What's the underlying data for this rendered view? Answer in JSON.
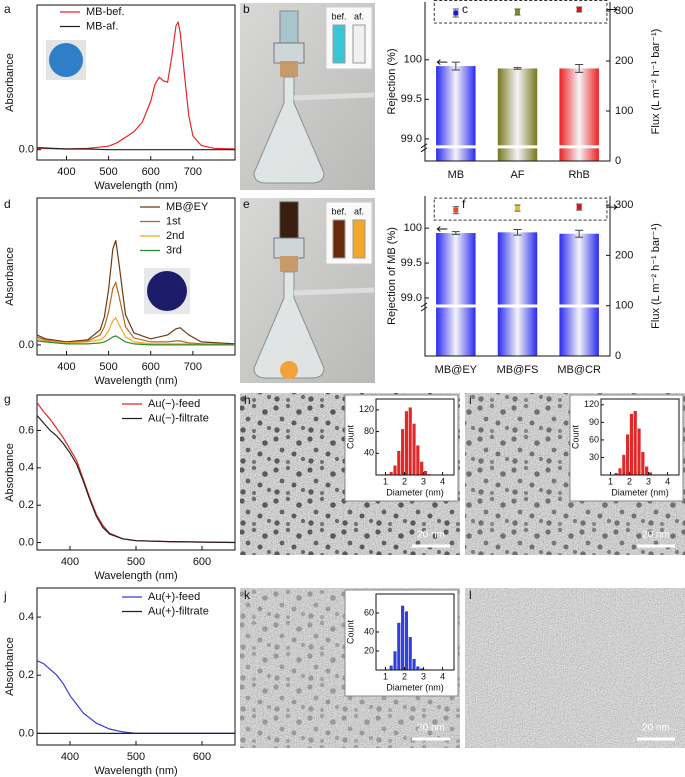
{
  "chart_data": [
    {
      "panel_label": "a",
      "type": "line",
      "xlabel": "Wavelength (nm)",
      "ylabel": "Absorbance",
      "x": [
        330,
        400,
        450,
        500,
        520,
        540,
        560,
        580,
        600,
        610,
        620,
        630,
        640,
        650,
        660,
        665,
        670,
        680,
        690,
        700,
        720,
        750,
        800
      ],
      "xlim": [
        330,
        800
      ],
      "xticks": [
        400,
        500,
        600,
        700
      ],
      "ylim": [
        -0.15,
        2.1
      ],
      "yticks": [
        {
          "value": 0,
          "label": "0.0"
        }
      ],
      "series": [
        {
          "name": "MB-bef.",
          "color": "#e8252a",
          "values": [
            0.02,
            0.01,
            0.02,
            0.05,
            0.1,
            0.18,
            0.26,
            0.4,
            0.7,
            0.95,
            1.05,
            1.0,
            0.98,
            1.35,
            1.8,
            1.85,
            1.7,
            1.1,
            0.5,
            0.2,
            0.06,
            0.02,
            0.01
          ]
        },
        {
          "name": "MB-af.",
          "color": "#222222",
          "values": [
            0.03,
            0.01,
            0.01,
            0.0,
            0.0,
            0.0,
            0.0,
            0.0,
            0.0,
            0.0,
            0.0,
            0.0,
            0.0,
            0.0,
            0.0,
            0.0,
            0.0,
            0.0,
            0.0,
            0.0,
            0.0,
            0.0,
            0.0
          ]
        }
      ]
    },
    {
      "panel_label": "c",
      "type": "bar",
      "ylabel": "Rejection (%)",
      "y2label": "Flux (L m⁻² h⁻¹ bar⁻¹)",
      "categories": [
        "MB",
        "AF",
        "RhB"
      ],
      "ylim": [
        98.72,
        100.73
      ],
      "yticks": [
        {
          "value": 99,
          "label": "99.0"
        },
        99.5,
        100
      ],
      "y2lim": [
        0,
        318
      ],
      "y2ticks": [
        0,
        100,
        200,
        300
      ],
      "series": [
        {
          "colors": [
            "#2a2af0",
            "#77771e",
            "#ee2020"
          ],
          "values": [
            99.92,
            99.89,
            99.89
          ],
          "errors": [
            0.05,
            0.01,
            0.05
          ]
        },
        {
          "axis": "y2",
          "colors": [
            "#1a1ad0",
            "#8a8a20",
            "#dd1010"
          ],
          "values": [
            296,
            298,
            303
          ],
          "errors": [
            8,
            6,
            5
          ]
        }
      ]
    },
    {
      "panel_label": "d",
      "type": "line",
      "xlabel": "Wavelength (nm)",
      "ylabel": "Absorbance",
      "x": [
        330,
        350,
        400,
        450,
        480,
        490,
        500,
        510,
        517,
        525,
        540,
        560,
        600,
        640,
        660,
        670,
        690,
        720,
        800
      ],
      "xlim": [
        330,
        800
      ],
      "xticks": [
        400,
        500,
        600,
        700
      ],
      "ylim": [
        -0.1,
        1.46
      ],
      "yticks": [
        {
          "value": 0,
          "label": "0.0"
        }
      ],
      "series": [
        {
          "name": "MB@EY",
          "color": "#6b3a12",
          "values": [
            0.1,
            0.06,
            0.03,
            0.05,
            0.15,
            0.28,
            0.55,
            0.95,
            1.04,
            0.8,
            0.3,
            0.12,
            0.06,
            0.1,
            0.16,
            0.17,
            0.1,
            0.03,
            0.01
          ]
        },
        {
          "name": "1st",
          "color": "#b5651d",
          "values": [
            0.08,
            0.05,
            0.02,
            0.04,
            0.1,
            0.18,
            0.33,
            0.56,
            0.62,
            0.48,
            0.18,
            0.07,
            0.03,
            0.03,
            0.04,
            0.04,
            0.02,
            0.01,
            0.0
          ]
        },
        {
          "name": "2nd",
          "color": "#f5a623",
          "values": [
            0.06,
            0.04,
            0.02,
            0.03,
            0.05,
            0.08,
            0.14,
            0.24,
            0.27,
            0.2,
            0.08,
            0.03,
            0.01,
            0.01,
            0.01,
            0.01,
            0.01,
            0.0,
            0.0
          ]
        },
        {
          "name": "3rd",
          "color": "#2e8b2e",
          "values": [
            0.04,
            0.03,
            0.01,
            0.01,
            0.02,
            0.03,
            0.05,
            0.08,
            0.09,
            0.07,
            0.03,
            0.01,
            0.0,
            0.0,
            0.0,
            0.0,
            0.0,
            0.0,
            0.0
          ]
        }
      ]
    },
    {
      "panel_label": "f",
      "type": "bar",
      "ylabel": "Rejection of MB (%)",
      "y2label": "Flux (L m⁻² h⁻¹ bar⁻¹)",
      "categories": [
        "MB@EY",
        "MB@FS",
        "MB@CR"
      ],
      "ylim": [
        98.17,
        100.46
      ],
      "yticks": [
        {
          "value": 99,
          "label": "99.0"
        },
        99.5,
        100
      ],
      "y2lim": [
        0,
        318
      ],
      "y2ticks": [
        0,
        100,
        200,
        300
      ],
      "series": [
        {
          "colors": [
            "#2a2af0",
            "#2a2af0",
            "#2a2af0"
          ],
          "values": [
            99.93,
            99.94,
            99.92
          ],
          "errors": [
            0.02,
            0.04,
            0.05
          ]
        },
        {
          "axis": "y2",
          "colors": [
            "#e0502a",
            "#e8c020",
            "#dd1010"
          ],
          "values": [
            290,
            294,
            296
          ],
          "errors": [
            7,
            6,
            6
          ]
        }
      ]
    },
    {
      "panel_label": "g",
      "type": "line",
      "xlabel": "Wavelength (nm)",
      "ylabel": "Absorbance",
      "x": [
        350,
        360,
        370,
        380,
        390,
        400,
        410,
        420,
        430,
        440,
        450,
        460,
        480,
        500,
        550,
        650
      ],
      "xlim": [
        350,
        650
      ],
      "xticks": [
        400,
        500,
        600
      ],
      "ylim": [
        -0.04,
        0.79
      ],
      "yticks": [
        {
          "value": 0,
          "label": "0.0"
        },
        0.2,
        0.4,
        0.6
      ],
      "series": [
        {
          "name": "Au(−)-feed",
          "color": "#e8252a",
          "values": [
            0.75,
            0.7,
            0.66,
            0.61,
            0.56,
            0.5,
            0.44,
            0.34,
            0.24,
            0.15,
            0.09,
            0.05,
            0.02,
            0.01,
            0.005,
            0.0
          ]
        },
        {
          "name": "Au(−)-filtrate",
          "color": "#222222",
          "values": [
            0.68,
            0.64,
            0.6,
            0.57,
            0.53,
            0.48,
            0.42,
            0.33,
            0.23,
            0.14,
            0.08,
            0.045,
            0.02,
            0.01,
            0.005,
            0.0
          ]
        }
      ]
    },
    {
      "panel_label": "h",
      "type": "histogram",
      "scale_bar": "20 nm",
      "xlabel": "Diameter (nm)",
      "ylabel": "Count",
      "color": "#e02828",
      "bins": [
        1.0,
        1.2,
        1.4,
        1.6,
        1.8,
        2.0,
        2.2,
        2.4,
        2.6,
        2.8,
        3.0,
        3.2,
        3.4
      ],
      "values": [
        2,
        6,
        18,
        45,
        85,
        118,
        125,
        95,
        55,
        25,
        8,
        2
      ],
      "xlim": [
        0.5,
        4.6
      ],
      "xticks": [
        1,
        2,
        3,
        4
      ],
      "ylim": [
        0,
        140
      ],
      "yticks": [
        40,
        80,
        120
      ]
    },
    {
      "panel_label": "i",
      "type": "histogram",
      "scale_bar": "20 nm",
      "xlabel": "Diameter (nm)",
      "ylabel": "Count",
      "color": "#e02828",
      "bins": [
        1.0,
        1.2,
        1.4,
        1.6,
        1.8,
        2.0,
        2.2,
        2.4,
        2.6,
        2.8,
        3.0,
        3.2,
        3.4
      ],
      "values": [
        1,
        4,
        12,
        35,
        70,
        105,
        110,
        80,
        40,
        15,
        5,
        1
      ],
      "xlim": [
        0.5,
        4.6
      ],
      "xticks": [
        1,
        2,
        3,
        4
      ],
      "ylim": [
        0,
        130
      ],
      "yticks": [
        30,
        60,
        90,
        120
      ]
    },
    {
      "panel_label": "j",
      "type": "line",
      "xlabel": "Wavelength (nm)",
      "ylabel": "Absorbance",
      "x": [
        350,
        360,
        370,
        380,
        390,
        400,
        410,
        420,
        440,
        460,
        480,
        500,
        550,
        650
      ],
      "xlim": [
        350,
        650
      ],
      "xticks": [
        400,
        500,
        600
      ],
      "ylim": [
        -0.04,
        0.5
      ],
      "yticks": [
        {
          "value": 0,
          "label": "0.0"
        },
        0.2,
        0.4
      ],
      "series": [
        {
          "name": "Au(+)-feed",
          "color": "#3a3ad8",
          "values": [
            0.25,
            0.24,
            0.22,
            0.2,
            0.17,
            0.13,
            0.1,
            0.07,
            0.035,
            0.015,
            0.005,
            0.0,
            0.0,
            0.0
          ]
        },
        {
          "name": "Au(+)-filtrate",
          "color": "#222222",
          "values": [
            0.0,
            0.0,
            0.0,
            0.0,
            0.0,
            0.0,
            0.0,
            0.0,
            0.0,
            0.0,
            0.0,
            0.0,
            0.0,
            0.0
          ]
        }
      ]
    },
    {
      "panel_label": "k",
      "type": "histogram",
      "scale_bar": "20 nm",
      "xlabel": "Diameter (nm)",
      "ylabel": "Count",
      "color": "#3040d8",
      "bins": [
        1.0,
        1.2,
        1.4,
        1.6,
        1.8,
        2.0,
        2.2,
        2.4,
        2.6,
        2.8,
        3.0,
        3.2,
        3.4
      ],
      "values": [
        1,
        5,
        20,
        50,
        68,
        62,
        35,
        12,
        4,
        2,
        1,
        0
      ],
      "xlim": [
        0.5,
        4.6
      ],
      "xticks": [
        1,
        2,
        3,
        4
      ],
      "ylim": [
        0,
        80
      ],
      "yticks": [
        20,
        40,
        60
      ]
    }
  ],
  "images": {
    "b": {
      "panel_label": "b",
      "before": "bef.",
      "after": "af."
    },
    "e": {
      "panel_label": "e",
      "before": "bef.",
      "after": "af."
    },
    "l": {
      "panel_label": "l",
      "scale_bar": "20 nm"
    }
  }
}
